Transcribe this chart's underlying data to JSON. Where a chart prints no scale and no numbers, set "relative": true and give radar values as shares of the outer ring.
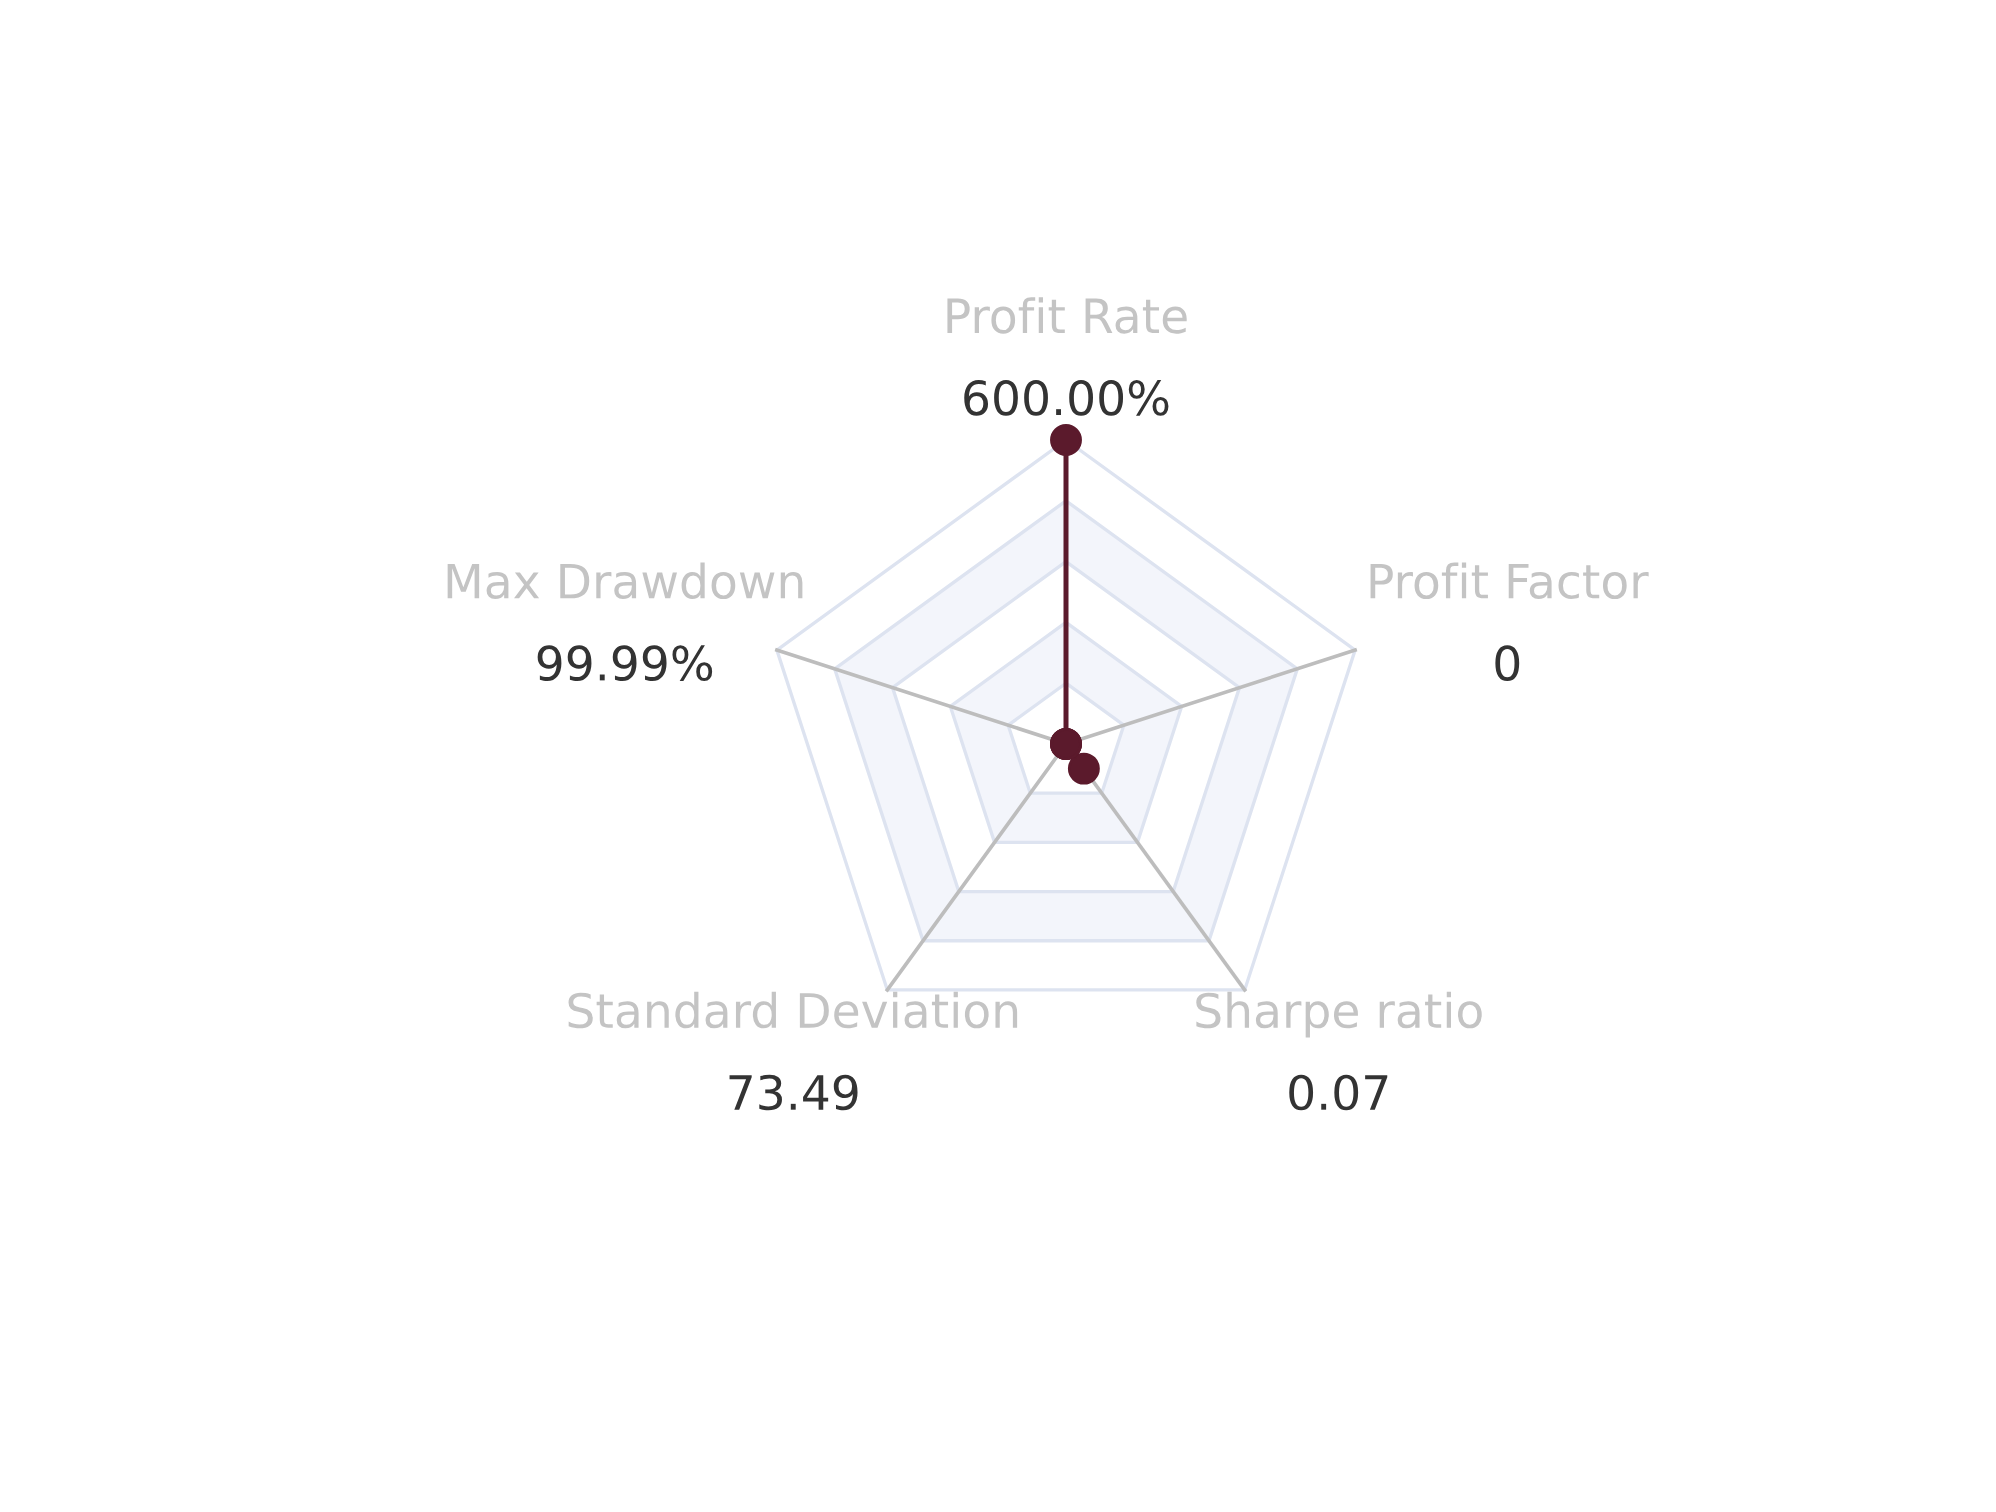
{
  "chart_data": {
    "type": "radar",
    "relative": true,
    "categories": [
      "Profit Rate",
      "Profit Factor",
      "Sharpe ratio",
      "Standard Deviation",
      "Max Drawdown"
    ],
    "series": [
      {
        "color": "#5b1a2c",
        "values": [
          1,
          0,
          0.1,
          0,
          0
        ]
      }
    ],
    "annotations": [
      "600.00%",
      "0",
      "0.07",
      "73.49",
      "99.99%"
    ],
    "marker": "circle",
    "line_style": "solid",
    "grid": true,
    "legend": false
  }
}
